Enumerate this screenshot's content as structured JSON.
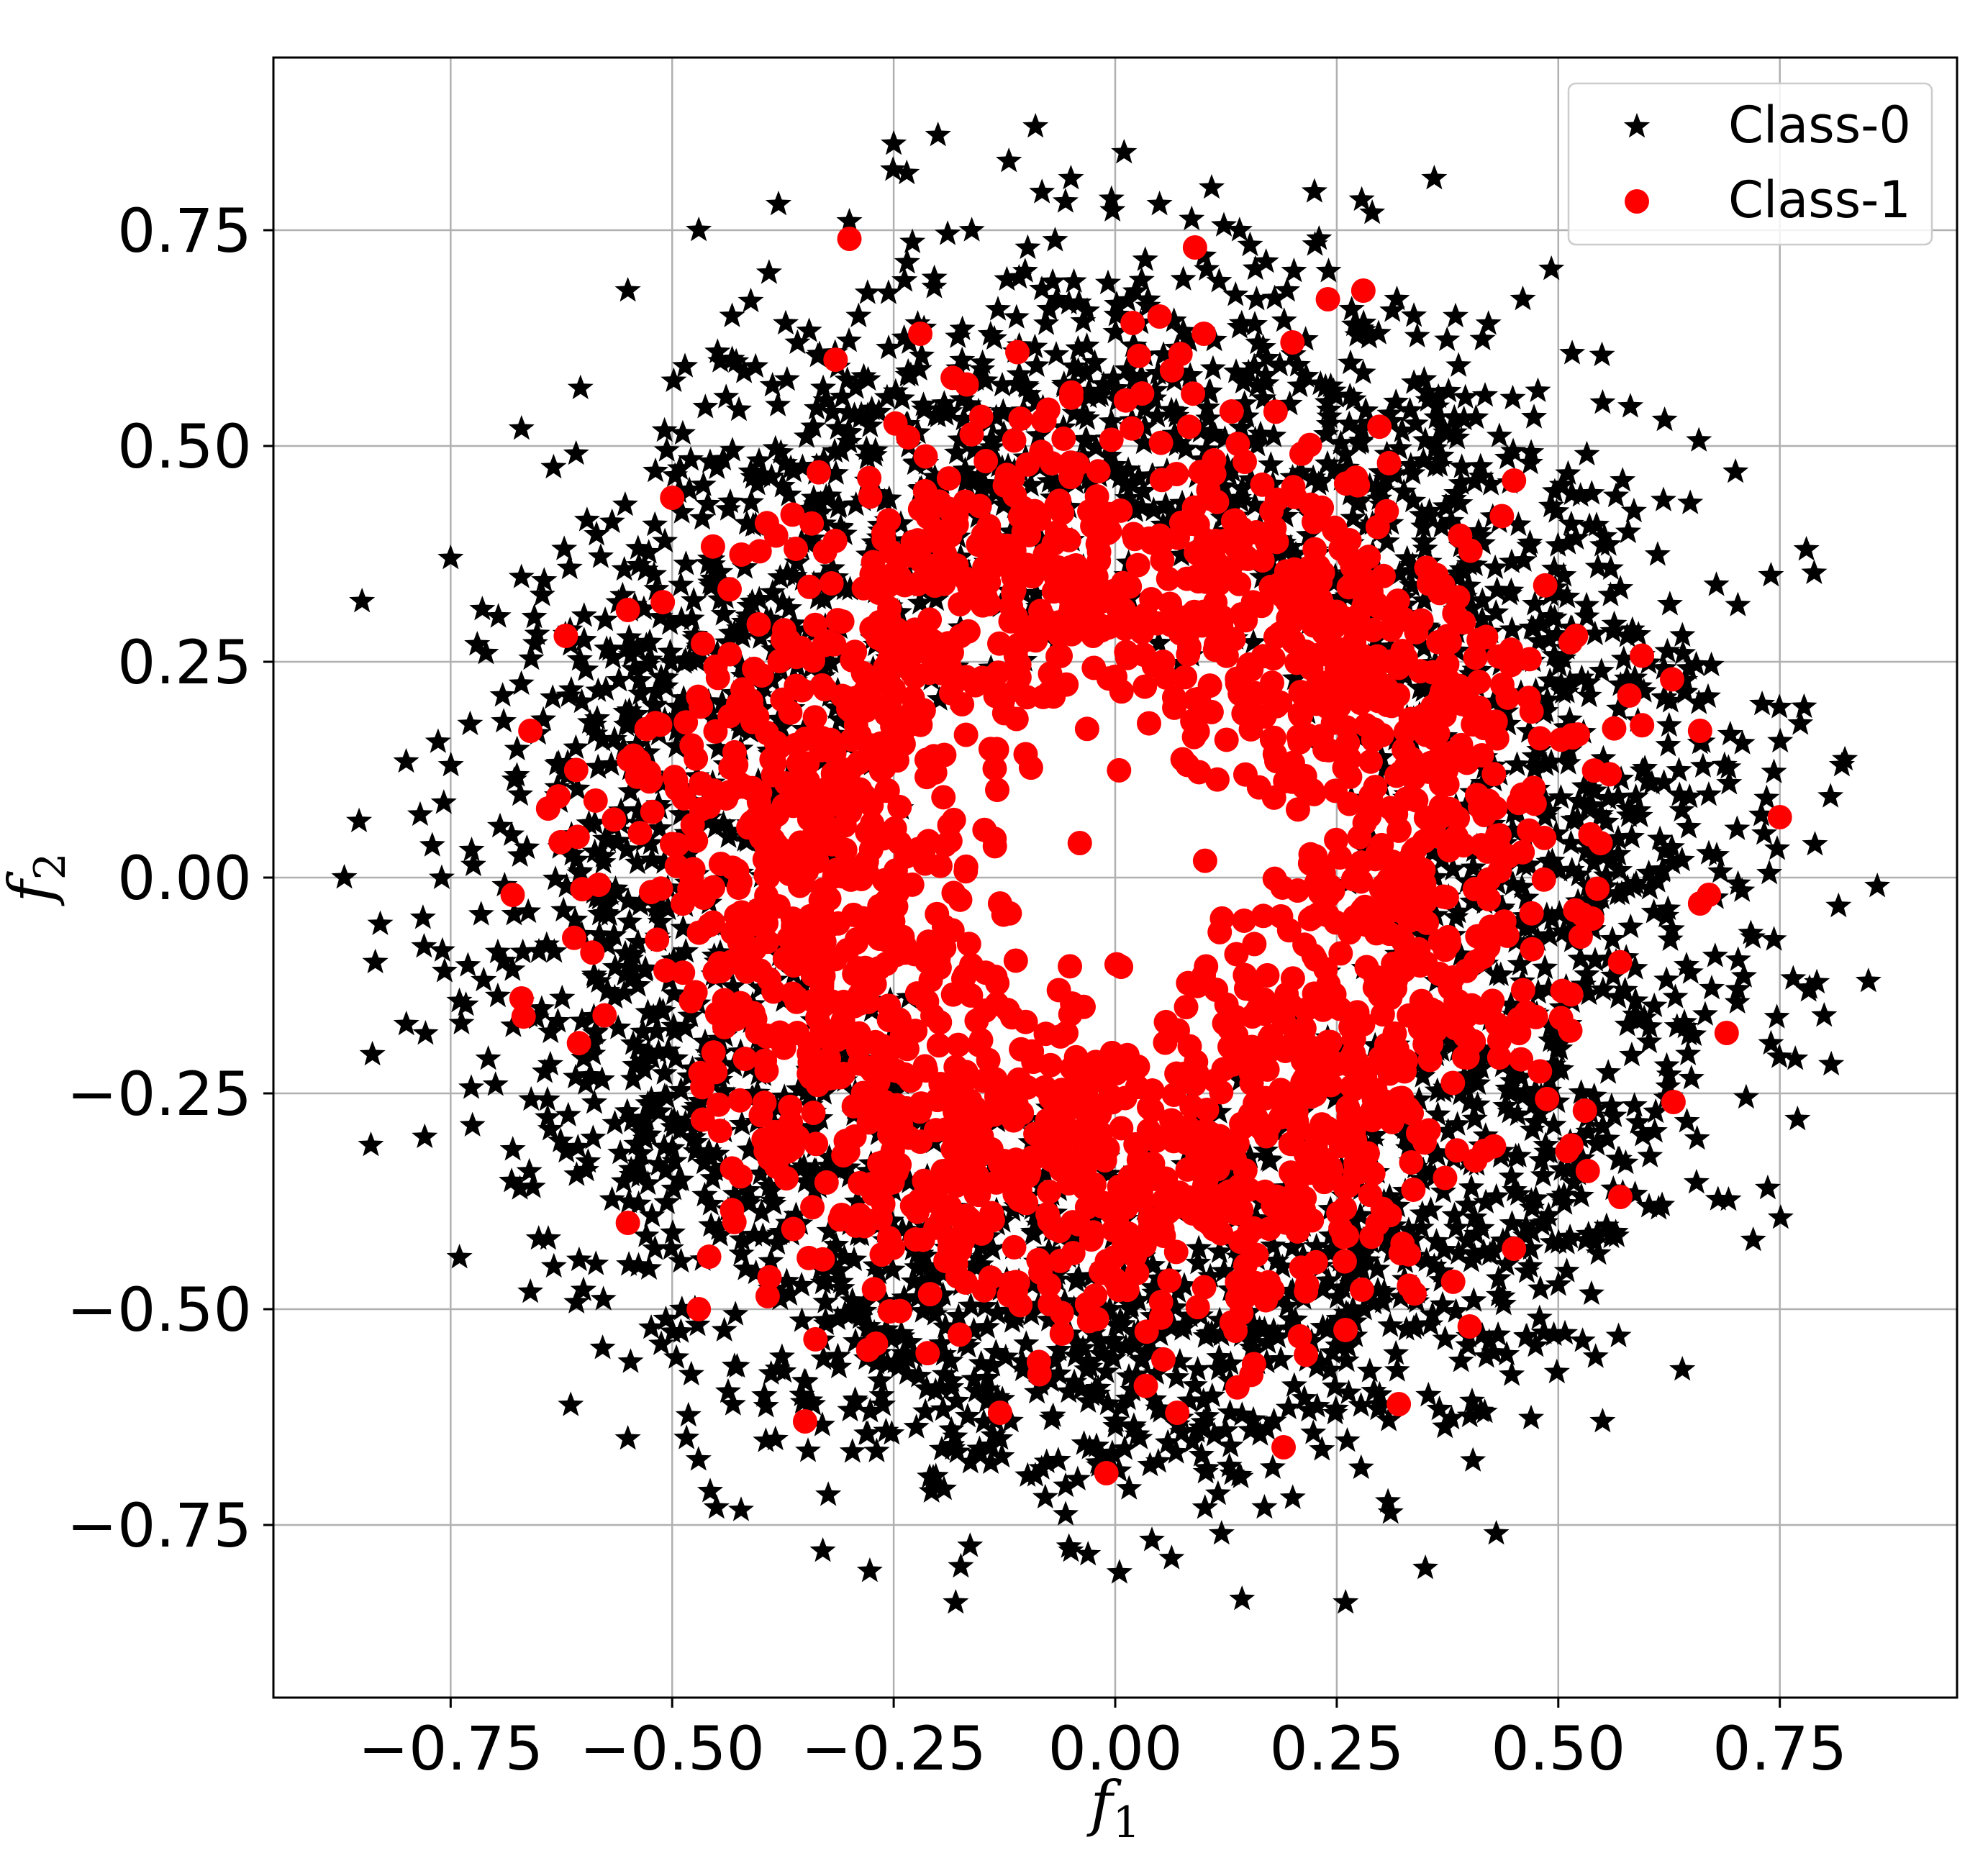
{
  "chart_data": {
    "type": "scatter",
    "title": "",
    "xlabel": "f",
    "xlabel_subscript": "1",
    "ylabel": "f",
    "ylabel_subscript": "2",
    "xlim": [
      -0.95,
      0.95
    ],
    "ylim": [
      -0.95,
      0.95
    ],
    "xticks": [
      -0.75,
      -0.5,
      -0.25,
      0.0,
      0.25,
      0.5,
      0.75
    ],
    "yticks": [
      -0.75,
      -0.5,
      -0.25,
      0.0,
      0.25,
      0.5,
      0.75
    ],
    "xtick_labels": [
      "−0.75",
      "−0.50",
      "−0.25",
      "0.00",
      "0.25",
      "0.50",
      "0.75"
    ],
    "ytick_labels": [
      "−0.75",
      "−0.50",
      "−0.25",
      "0.00",
      "0.25",
      "0.50",
      "0.75"
    ],
    "grid": true,
    "legend_position": "top-right",
    "series": [
      {
        "name": "Class-0",
        "marker": "star",
        "color": "#000000",
        "approx_count": 3000,
        "radius_range": [
          0.25,
          0.87
        ],
        "x": [
          -0.87,
          -0.84,
          -0.85,
          -0.78,
          -0.75,
          -0.72,
          -0.67,
          -0.55,
          -0.47,
          -0.38,
          -0.3,
          -0.25,
          -0.2,
          -0.12,
          -0.09,
          -0.05,
          0.01,
          0.05,
          0.1,
          0.23,
          0.29,
          0.36,
          0.46,
          0.55,
          0.62,
          0.7,
          0.74,
          0.78,
          0.82,
          0.86,
          0.85,
          0.8,
          0.77,
          0.72,
          0.64,
          0.55,
          0.43,
          0.35,
          0.26,
          0.12,
          -0.05,
          -0.18,
          -0.33,
          -0.45,
          -0.55,
          -0.66,
          -0.74,
          -0.8
        ],
        "y": [
          0.0,
          -0.31,
          0.32,
          -0.08,
          0.37,
          0.27,
          0.52,
          0.68,
          0.75,
          0.78,
          0.76,
          0.85,
          0.86,
          0.83,
          0.87,
          0.81,
          0.84,
          0.78,
          0.72,
          0.74,
          0.77,
          0.81,
          0.67,
          0.55,
          0.53,
          0.47,
          0.35,
          0.38,
          0.13,
          -0.01,
          -0.12,
          -0.16,
          -0.28,
          -0.42,
          -0.57,
          -0.63,
          -0.76,
          -0.8,
          -0.84,
          -0.76,
          -0.78,
          -0.84,
          -0.78,
          -0.73,
          -0.65,
          -0.48,
          -0.44,
          -0.17
        ]
      },
      {
        "name": "Class-1",
        "marker": "circle",
        "color": "#ff0000",
        "approx_count": 2000,
        "radius_range": [
          0.1,
          0.75
        ],
        "x": [
          -0.3,
          0.09,
          0.24,
          0.28,
          -0.22,
          0.05,
          0.1,
          0.2,
          -0.5,
          -0.62,
          -0.66,
          -0.68,
          -0.67,
          -0.64,
          -0.55,
          -0.55,
          -0.47,
          -0.35,
          -0.27,
          -0.13,
          -0.01,
          0.07,
          0.19,
          0.32,
          0.4,
          0.45,
          0.53,
          0.57,
          0.66,
          0.67,
          0.69,
          0.75,
          0.63,
          0.66,
          0.52,
          0.45,
          -0.04,
          0.08,
          -0.13
        ],
        "y": [
          0.74,
          0.73,
          0.67,
          0.68,
          0.63,
          0.65,
          0.63,
          0.62,
          0.44,
          0.28,
          0.17,
          -0.02,
          -0.14,
          0.08,
          0.31,
          -0.4,
          -0.5,
          -0.63,
          -0.54,
          -0.62,
          -0.69,
          -0.62,
          -0.66,
          -0.61,
          -0.52,
          -0.43,
          -0.27,
          -0.37,
          0.17,
          -0.02,
          -0.18,
          0.07,
          -0.26,
          -0.03,
          0.28,
          0.46,
          0.04,
          -0.15,
          -0.03
        ]
      }
    ]
  }
}
